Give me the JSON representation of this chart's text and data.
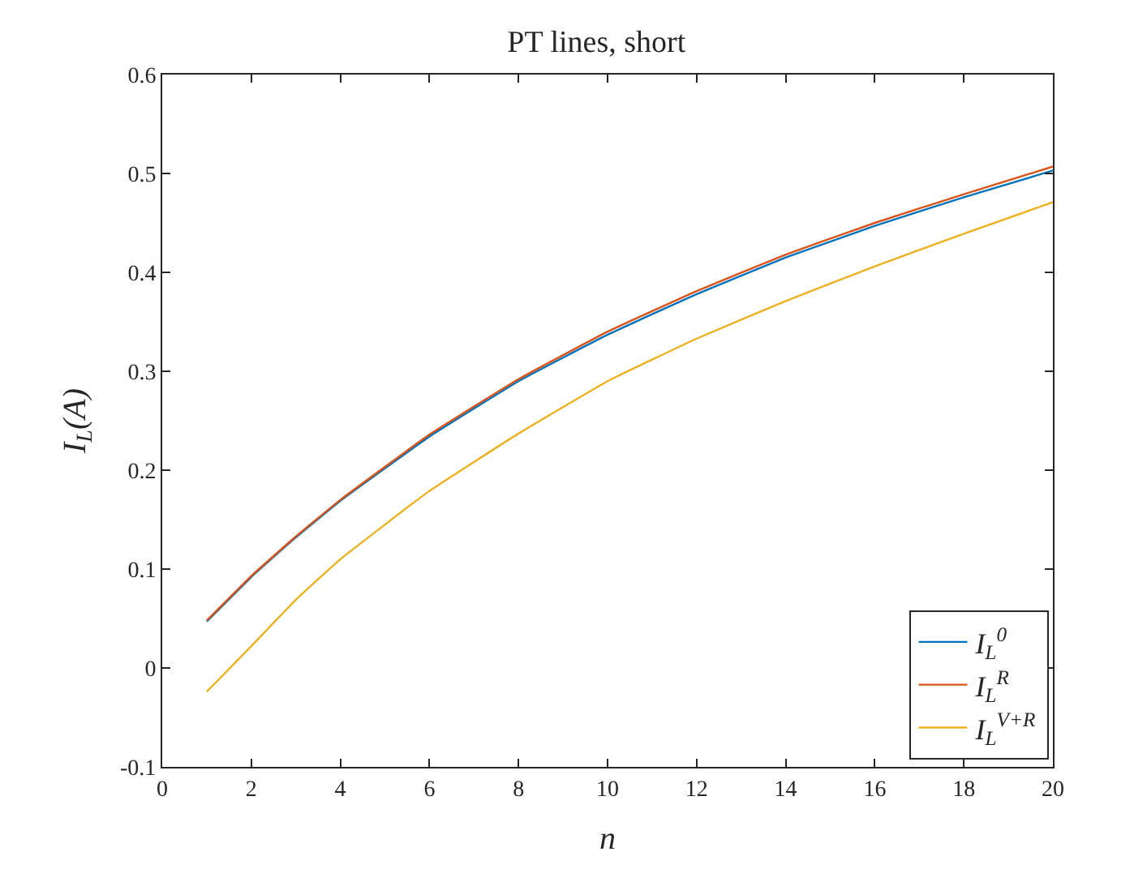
{
  "chart_data": {
    "type": "line",
    "title": "PT lines, short",
    "xlabel": "n",
    "ylabel": "I$_{L}$(A)",
    "x": [
      1,
      2,
      3,
      4,
      6,
      8,
      10,
      12,
      14,
      16,
      18,
      20
    ],
    "series": [
      {
        "name": "I$_{L}$$^{0}$",
        "color": "#0072bd",
        "values": [
          0.047,
          0.092,
          0.132,
          0.169,
          0.234,
          0.29,
          0.337,
          0.378,
          0.415,
          0.447,
          0.476,
          0.503
        ]
      },
      {
        "name": "I$_{L}$$^{R}$",
        "color": "#d95319",
        "values": [
          0.048,
          0.093,
          0.133,
          0.17,
          0.236,
          0.292,
          0.34,
          0.381,
          0.418,
          0.45,
          0.479,
          0.507
        ]
      },
      {
        "name": "I$_{L}$$^{V+R}$",
        "color": "#edb120",
        "values": [
          -0.024,
          0.022,
          0.069,
          0.11,
          0.179,
          0.237,
          0.29,
          0.333,
          0.371,
          0.406,
          0.439,
          0.471
        ]
      }
    ],
    "xlim": [
      0,
      20
    ],
    "xticks": [
      0,
      2,
      4,
      6,
      8,
      10,
      12,
      14,
      16,
      18,
      20
    ],
    "ylim": [
      -0.1,
      0.6
    ],
    "yticks": [
      -0.1,
      0,
      0.1,
      0.2,
      0.3,
      0.4,
      0.5,
      0.6
    ],
    "grid": false,
    "legend": "bottom right",
    "marker": "none",
    "line_style": "solid"
  }
}
